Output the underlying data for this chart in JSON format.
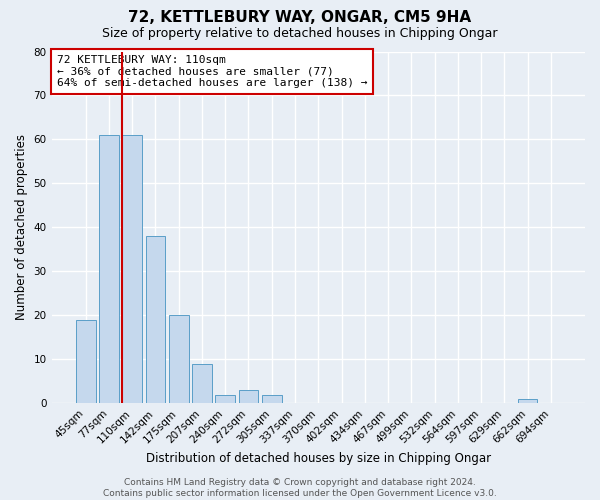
{
  "title": "72, KETTLEBURY WAY, ONGAR, CM5 9HA",
  "subtitle": "Size of property relative to detached houses in Chipping Ongar",
  "xlabel": "Distribution of detached houses by size in Chipping Ongar",
  "ylabel": "Number of detached properties",
  "bar_labels": [
    "45sqm",
    "77sqm",
    "110sqm",
    "142sqm",
    "175sqm",
    "207sqm",
    "240sqm",
    "272sqm",
    "305sqm",
    "337sqm",
    "370sqm",
    "402sqm",
    "434sqm",
    "467sqm",
    "499sqm",
    "532sqm",
    "564sqm",
    "597sqm",
    "629sqm",
    "662sqm",
    "694sqm"
  ],
  "bar_values": [
    19,
    61,
    61,
    38,
    20,
    9,
    2,
    3,
    2,
    0,
    0,
    0,
    0,
    0,
    0,
    0,
    0,
    0,
    0,
    1,
    0
  ],
  "bar_color": "#c5d8ed",
  "bar_edge_color": "#5a9ec8",
  "highlight_bar_index": 2,
  "highlight_color": "#cc0000",
  "ylim": [
    0,
    80
  ],
  "yticks": [
    0,
    10,
    20,
    30,
    40,
    50,
    60,
    70,
    80
  ],
  "annotation_title": "72 KETTLEBURY WAY: 110sqm",
  "annotation_line1": "← 36% of detached houses are smaller (77)",
  "annotation_line2": "64% of semi-detached houses are larger (138) →",
  "annotation_box_color": "#cc0000",
  "footer_line1": "Contains HM Land Registry data © Crown copyright and database right 2024.",
  "footer_line2": "Contains public sector information licensed under the Open Government Licence v3.0.",
  "bg_color": "#e8eef5",
  "grid_color": "#ffffff",
  "title_fontsize": 11,
  "subtitle_fontsize": 9,
  "axis_label_fontsize": 8.5,
  "tick_fontsize": 7.5,
  "annotation_fontsize": 8,
  "footer_fontsize": 6.5
}
